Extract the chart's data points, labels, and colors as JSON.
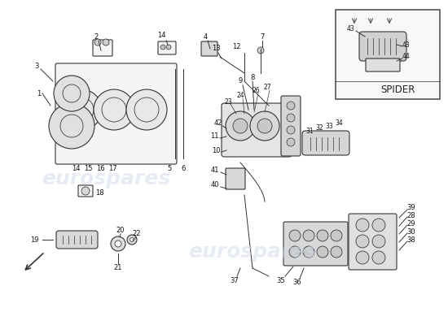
{
  "title": "",
  "background_color": "#ffffff",
  "watermark_text": "eurospares",
  "watermark_color": "#d0d8e8",
  "watermark_alpha": 0.5,
  "spider_label": "SPIDER",
  "fig_width": 5.5,
  "fig_height": 4.0,
  "dpi": 100,
  "part_numbers": {
    "top_left": [
      "1",
      "2",
      "3",
      "4",
      "5",
      "6",
      "7"
    ],
    "mid_left": [
      "14",
      "15",
      "16",
      "17",
      "18"
    ],
    "bottom_left": [
      "19",
      "20",
      "21",
      "22"
    ],
    "center_top": [
      "9",
      "8",
      "12",
      "13"
    ],
    "center_mid": [
      "10",
      "11",
      "40",
      "41",
      "42",
      "37"
    ],
    "center_bottom": [
      "35",
      "36"
    ],
    "right_top": [
      "23",
      "24",
      "26",
      "27"
    ],
    "right_mid": [
      "31",
      "32",
      "33",
      "34"
    ],
    "right_bottom": [
      "28",
      "29",
      "30",
      "38",
      "39"
    ],
    "spider": [
      "43",
      "44"
    ]
  },
  "arrow_color": "#333333",
  "line_color": "#333333",
  "component_fill": "#f5f5f5",
  "component_stroke": "#222222",
  "label_fontsize": 6.5,
  "label_color": "#111111"
}
